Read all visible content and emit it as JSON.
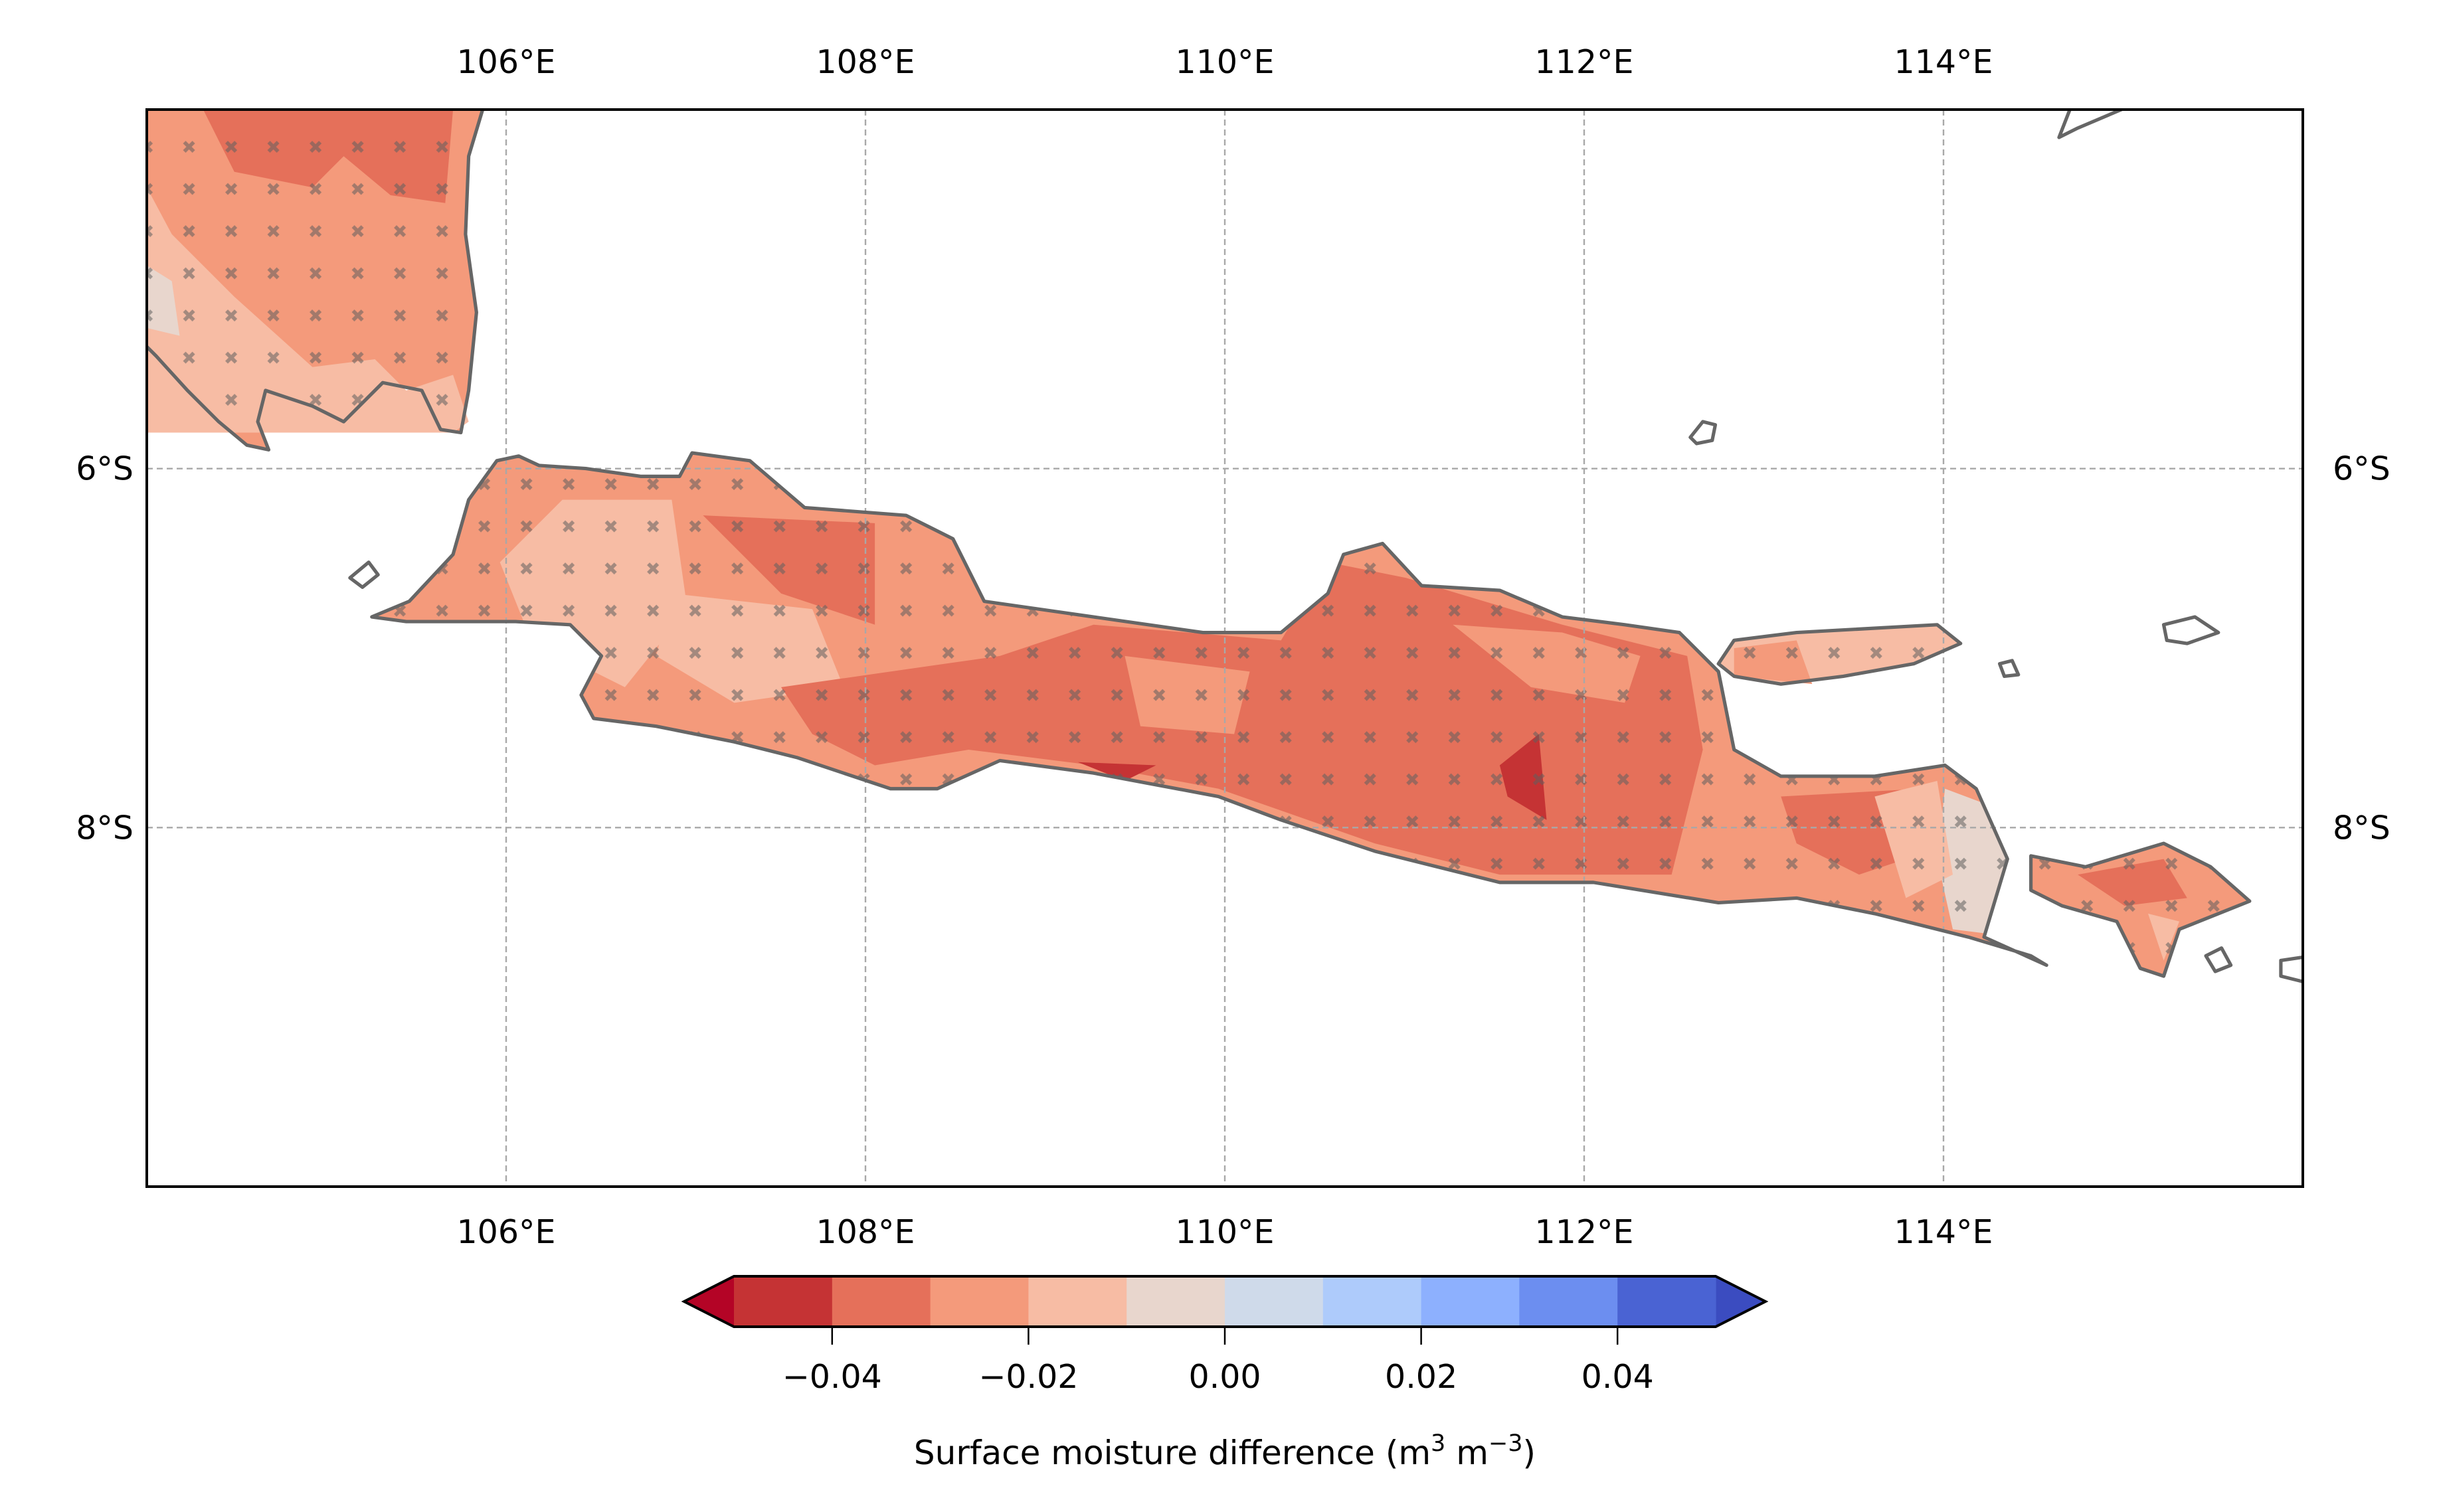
{
  "chart_data": {
    "type": "heatmap",
    "subtype": "filled-contour map with stippling",
    "title": "",
    "region": "Java, Indonesia",
    "lon_range": [
      104,
      116
    ],
    "lat_range": [
      -10,
      -4
    ],
    "x_ticks": [
      {
        "value": 106,
        "label": "106°E"
      },
      {
        "value": 108,
        "label": "108°E"
      },
      {
        "value": 110,
        "label": "110°E"
      },
      {
        "value": 112,
        "label": "112°E"
      },
      {
        "value": 114,
        "label": "114°E"
      }
    ],
    "y_ticks": [
      {
        "value": -6,
        "label": "6°S"
      },
      {
        "value": -8,
        "label": "8°S"
      }
    ],
    "grid": true,
    "stippling": "x markers over land (significant points)",
    "colorbar": {
      "label_main": "Surface moisture difference (m",
      "label_sup1": "3",
      "label_mid": " m",
      "label_sup2": "−3",
      "label_end": ")",
      "levels": [
        -0.05,
        -0.04,
        -0.03,
        -0.02,
        -0.01,
        0.0,
        0.01,
        0.02,
        0.03,
        0.04,
        0.05
      ],
      "colors": [
        "#c53334",
        "#e5705a",
        "#f49a7b",
        "#f7bca4",
        "#e8d6cd",
        "#cfdaea",
        "#aecbfb",
        "#8db0fe",
        "#6c8ef0",
        "#4a63d3"
      ],
      "under_color": "#b40426",
      "over_color": "#3b4cc0",
      "extend": "both",
      "ticks": [
        {
          "value": -0.04,
          "label": "−0.04"
        },
        {
          "value": -0.02,
          "label": "−0.02"
        },
        {
          "value": 0.0,
          "label": "0.00"
        },
        {
          "value": 0.02,
          "label": "0.02"
        },
        {
          "value": 0.04,
          "label": "0.04"
        }
      ]
    },
    "summary_values": {
      "dominant_range": [
        -0.04,
        -0.01
      ],
      "min_region_value_approx": -0.05,
      "max_region_value_approx": 0.0
    }
  }
}
